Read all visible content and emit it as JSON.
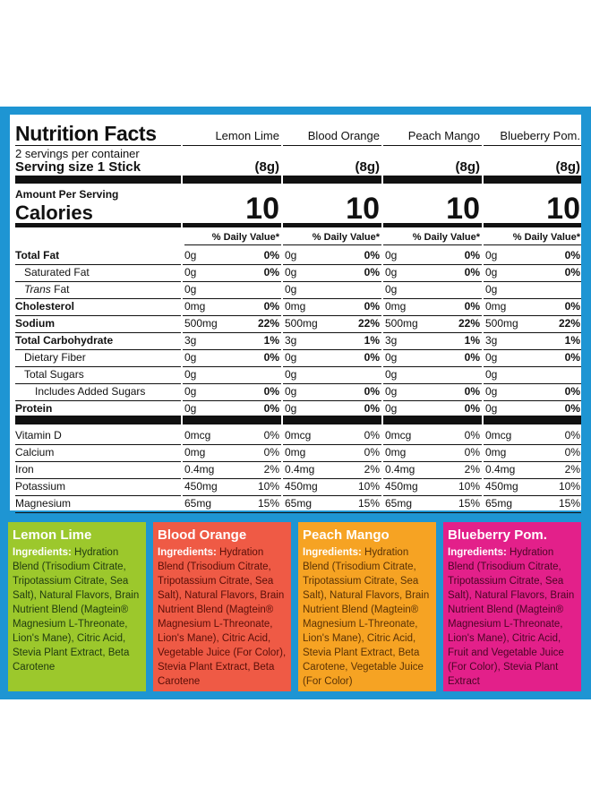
{
  "header": {
    "title": "Nutrition Facts",
    "servings": "2 servings per container",
    "serving_size": "Serving size   1 Stick",
    "amount_per_serving": "Amount Per Serving",
    "calories_label": "Calories",
    "dv_header": "% Daily Value*"
  },
  "row_labels": {
    "total_fat": "Total Fat",
    "saturated_fat": "Saturated Fat",
    "trans_fat_italic": "Trans",
    "trans_fat_rest": " Fat",
    "cholesterol": "Cholesterol",
    "sodium": "Sodium",
    "total_carb": "Total Carbohydrate",
    "dietary_fiber": "Dietary Fiber",
    "total_sugars": "Total Sugars",
    "added_sugars": "Includes Added Sugars",
    "protein": "Protein",
    "vitamin_d": "Vitamin D",
    "calcium": "Calcium",
    "iron": "Iron",
    "potassium": "Potassium",
    "magnesium": "Magnesium"
  },
  "flavors": [
    {
      "name": "Lemon Lime",
      "size": "(8g)",
      "calories": "10",
      "total_fat": {
        "amt": "0g",
        "pct": "0%"
      },
      "saturated_fat": {
        "amt": "0g",
        "pct": "0%"
      },
      "trans_fat": {
        "amt": "0g"
      },
      "cholesterol": {
        "amt": "0mg",
        "pct": "0%"
      },
      "sodium": {
        "amt": "500mg",
        "pct": "22%"
      },
      "total_carb": {
        "amt": "3g",
        "pct": "1%"
      },
      "dietary_fiber": {
        "amt": "0g",
        "pct": "0%"
      },
      "total_sugars": {
        "amt": "0g"
      },
      "added_sugars": {
        "amt": "0g",
        "pct": "0%"
      },
      "protein": {
        "amt": "0g",
        "pct": "0%"
      },
      "vitamin_d": {
        "amt": "0mcg",
        "pct": "0%"
      },
      "calcium": {
        "amt": "0mg",
        "pct": "0%"
      },
      "iron": {
        "amt": "0.4mg",
        "pct": "2%"
      },
      "potassium": {
        "amt": "450mg",
        "pct": "10%"
      },
      "magnesium": {
        "amt": "65mg",
        "pct": "15%"
      }
    },
    {
      "name": "Blood Orange",
      "size": "(8g)",
      "calories": "10",
      "total_fat": {
        "amt": "0g",
        "pct": "0%"
      },
      "saturated_fat": {
        "amt": "0g",
        "pct": "0%"
      },
      "trans_fat": {
        "amt": "0g"
      },
      "cholesterol": {
        "amt": "0mg",
        "pct": "0%"
      },
      "sodium": {
        "amt": "500mg",
        "pct": "22%"
      },
      "total_carb": {
        "amt": "3g",
        "pct": "1%"
      },
      "dietary_fiber": {
        "amt": "0g",
        "pct": "0%"
      },
      "total_sugars": {
        "amt": "0g"
      },
      "added_sugars": {
        "amt": "0g",
        "pct": "0%"
      },
      "protein": {
        "amt": "0g",
        "pct": "0%"
      },
      "vitamin_d": {
        "amt": "0mcg",
        "pct": "0%"
      },
      "calcium": {
        "amt": "0mg",
        "pct": "0%"
      },
      "iron": {
        "amt": "0.4mg",
        "pct": "2%"
      },
      "potassium": {
        "amt": "450mg",
        "pct": "10%"
      },
      "magnesium": {
        "amt": "65mg",
        "pct": "15%"
      }
    },
    {
      "name": "Peach Mango",
      "size": "(8g)",
      "calories": "10",
      "total_fat": {
        "amt": "0g",
        "pct": "0%"
      },
      "saturated_fat": {
        "amt": "0g",
        "pct": "0%"
      },
      "trans_fat": {
        "amt": "0g"
      },
      "cholesterol": {
        "amt": "0mg",
        "pct": "0%"
      },
      "sodium": {
        "amt": "500mg",
        "pct": "22%"
      },
      "total_carb": {
        "amt": "3g",
        "pct": "1%"
      },
      "dietary_fiber": {
        "amt": "0g",
        "pct": "0%"
      },
      "total_sugars": {
        "amt": "0g"
      },
      "added_sugars": {
        "amt": "0g",
        "pct": "0%"
      },
      "protein": {
        "amt": "0g",
        "pct": "0%"
      },
      "vitamin_d": {
        "amt": "0mcg",
        "pct": "0%"
      },
      "calcium": {
        "amt": "0mg",
        "pct": "0%"
      },
      "iron": {
        "amt": "0.4mg",
        "pct": "2%"
      },
      "potassium": {
        "amt": "450mg",
        "pct": "10%"
      },
      "magnesium": {
        "amt": "65mg",
        "pct": "15%"
      }
    },
    {
      "name": "Blueberry Pom.",
      "size": "(8g)",
      "calories": "10",
      "total_fat": {
        "amt": "0g",
        "pct": "0%"
      },
      "saturated_fat": {
        "amt": "0g",
        "pct": "0%"
      },
      "trans_fat": {
        "amt": "0g"
      },
      "cholesterol": {
        "amt": "0mg",
        "pct": "0%"
      },
      "sodium": {
        "amt": "500mg",
        "pct": "22%"
      },
      "total_carb": {
        "amt": "3g",
        "pct": "1%"
      },
      "dietary_fiber": {
        "amt": "0g",
        "pct": "0%"
      },
      "total_sugars": {
        "amt": "0g"
      },
      "added_sugars": {
        "amt": "0g",
        "pct": "0%"
      },
      "protein": {
        "amt": "0g",
        "pct": "0%"
      },
      "vitamin_d": {
        "amt": "0mcg",
        "pct": "0%"
      },
      "calcium": {
        "amt": "0mg",
        "pct": "0%"
      },
      "iron": {
        "amt": "0.4mg",
        "pct": "2%"
      },
      "potassium": {
        "amt": "450mg",
        "pct": "10%"
      },
      "magnesium": {
        "amt": "65mg",
        "pct": "15%"
      }
    }
  ],
  "ingredients_label": "Ingredients:",
  "cards": [
    {
      "title": "Lemon Lime",
      "bg": "#9cc82c",
      "text_color": "#1f3a10",
      "ingredients": " Hydration Blend (Trisodium Citrate, Tripotassium Citrate, Sea Salt), Natural Flavors, Brain Nutrient Blend (Magtein® Magnesium L-Threonate, Lion's Mane), Citric Acid, Stevia Plant Extract, Beta Carotene"
    },
    {
      "title": "Blood Orange",
      "bg": "#ef5a45",
      "text_color": "#5a0f08",
      "ingredients": " Hydration Blend (Trisodium Citrate, Tripotassium Citrate, Sea Salt), Natural Flavors, Brain Nutrient Blend (Magtein® Magnesium L-Threonate, Lion's Mane), Citric Acid, Vegetable Juice (For Color), Stevia Plant Extract, Beta Carotene"
    },
    {
      "title": "Peach Mango",
      "bg": "#f6a323",
      "text_color": "#5a3205",
      "ingredients": " Hydration Blend (Trisodium Citrate, Tripotassium Citrate, Sea Salt), Natural Flavors, Brain Nutrient Blend (Magtein® Magnesium L-Threonate, Lion's Mane), Citric Acid, Stevia Plant Extract, Beta Carotene, Vegetable Juice (For Color)"
    },
    {
      "title": "Blueberry Pom.",
      "bg": "#e3208a",
      "text_color": "#4a0525",
      "ingredients": " Hydration Blend (Trisodium Citrate, Tripotassium Citrate, Sea Salt), Natural Flavors, Brain Nutrient Blend (Magtein® Magnesium L-Threonate, Lion's Mane), Citric Acid, Fruit and Vegetable Juice (For Color), Stevia Plant Extract"
    }
  ],
  "colors": {
    "frame": "#1e95d3"
  }
}
